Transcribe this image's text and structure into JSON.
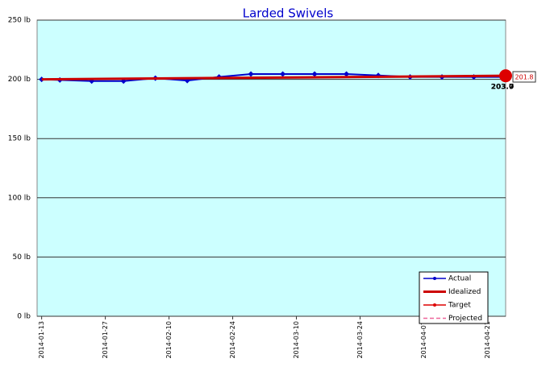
{
  "chart_data": {
    "type": "line",
    "title": "Larded Swivels",
    "xlim": [
      "2014-01-12",
      "2014-04-25"
    ],
    "xticks": [
      "2014-01-13",
      "2014-01-27",
      "2014-02-10",
      "2014-02-24",
      "2014-03-10",
      "2014-03-24",
      "2014-04-07",
      "2014-04-21"
    ],
    "ylim": [
      0,
      250
    ],
    "yticks": [
      {
        "value": 0,
        "label": "0 lb"
      },
      {
        "value": 50,
        "label": "50 lb"
      },
      {
        "value": 100,
        "label": "100 lb"
      },
      {
        "value": 150,
        "label": "150 lb"
      },
      {
        "value": 200,
        "label": "200 lb"
      },
      {
        "value": 250,
        "label": "250 lb"
      }
    ],
    "grid": true,
    "background": "#ccffff",
    "legend": "lower right",
    "series": [
      {
        "name": "Actual",
        "color": "#0000cc",
        "marker": "diamond",
        "x": [
          "2014-01-13",
          "2014-01-17",
          "2014-01-24",
          "2014-01-31",
          "2014-02-07",
          "2014-02-14",
          "2014-02-21",
          "2014-02-28",
          "2014-03-07",
          "2014-03-14",
          "2014-03-21",
          "2014-03-28",
          "2014-04-04",
          "2014-04-11",
          "2014-04-18",
          "2014-04-25"
        ],
        "values": [
          200,
          199.5,
          198.5,
          198.5,
          201,
          199,
          202,
          204.5,
          204.5,
          204.5,
          204.5,
          203.3,
          202,
          202,
          202,
          202
        ]
      },
      {
        "name": "Idealized",
        "color": "#cc0000",
        "x": [
          "2014-01-13",
          "2014-04-25"
        ],
        "values": [
          200,
          203
        ]
      },
      {
        "name": "Target",
        "color": "#dd0000",
        "marker": "circle",
        "x": [
          "2014-04-25"
        ],
        "values": [
          203
        ]
      },
      {
        "name": "Projected",
        "color": "#ee6699",
        "dashed": true,
        "x": [],
        "values": []
      }
    ],
    "annotations": [
      "201.8",
      "203.7",
      "203.0"
    ]
  }
}
